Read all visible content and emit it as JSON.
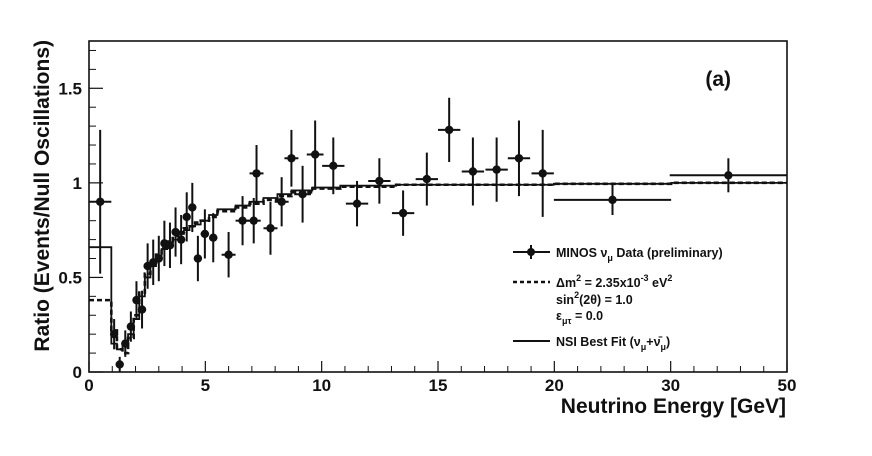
{
  "chart_data": {
    "type": "scatter",
    "panel_label": "(a)",
    "xlabel": "Neutrino Energy [GeV]",
    "ylabel": "Ratio (Events/Null Oscillations)",
    "xlim": [
      0,
      50
    ],
    "ylim": [
      0,
      1.75
    ],
    "x_ticks": [
      {
        "value": 0,
        "label": "0"
      },
      {
        "value": 8.3333,
        "label": "5"
      },
      {
        "value": 16.6667,
        "label": "10"
      },
      {
        "value": 25,
        "label": "15"
      },
      {
        "value": 33.3333,
        "label": "20"
      },
      {
        "value": 41.6667,
        "label": "30"
      },
      {
        "value": 50,
        "label": "50"
      }
    ],
    "y_ticks": [
      {
        "value": 0,
        "label": "0"
      },
      {
        "value": 0.5,
        "label": "0.5"
      },
      {
        "value": 1,
        "label": "1"
      },
      {
        "value": 1.5,
        "label": "1.5"
      }
    ],
    "series": [
      {
        "name": "MINOS ν_μ Data (preliminary)",
        "style": "points-with-error-bars",
        "points": [
          {
            "x": 0.8,
            "xerr": 0.8,
            "y": 0.9,
            "yerr": 0.38
          },
          {
            "x": 1.8,
            "xerr": 0.2,
            "y": 0.2,
            "yerr": 0.08
          },
          {
            "x": 2.2,
            "xerr": 0.2,
            "y": 0.04,
            "yerr": 0.04
          },
          {
            "x": 2.6,
            "xerr": 0.2,
            "y": 0.15,
            "yerr": 0.07
          },
          {
            "x": 3.0,
            "xerr": 0.2,
            "y": 0.24,
            "yerr": 0.08
          },
          {
            "x": 3.4,
            "xerr": 0.2,
            "y": 0.38,
            "yerr": 0.1
          },
          {
            "x": 3.8,
            "xerr": 0.2,
            "y": 0.33,
            "yerr": 0.1
          },
          {
            "x": 4.2,
            "xerr": 0.2,
            "y": 0.56,
            "yerr": 0.12
          },
          {
            "x": 4.6,
            "xerr": 0.2,
            "y": 0.58,
            "yerr": 0.12
          },
          {
            "x": 5.0,
            "xerr": 0.2,
            "y": 0.6,
            "yerr": 0.12
          },
          {
            "x": 5.4,
            "xerr": 0.2,
            "y": 0.68,
            "yerr": 0.12
          },
          {
            "x": 5.8,
            "xerr": 0.2,
            "y": 0.67,
            "yerr": 0.12
          },
          {
            "x": 6.2,
            "xerr": 0.2,
            "y": 0.74,
            "yerr": 0.13
          },
          {
            "x": 6.6,
            "xerr": 0.2,
            "y": 0.7,
            "yerr": 0.13
          },
          {
            "x": 7.0,
            "xerr": 0.2,
            "y": 0.82,
            "yerr": 0.13
          },
          {
            "x": 7.4,
            "xerr": 0.2,
            "y": 0.87,
            "yerr": 0.13
          },
          {
            "x": 7.8,
            "xerr": 0.2,
            "y": 0.6,
            "yerr": 0.12
          },
          {
            "x": 8.3,
            "xerr": 0.3,
            "y": 0.73,
            "yerr": 0.13
          },
          {
            "x": 8.9,
            "xerr": 0.3,
            "y": 0.71,
            "yerr": 0.13
          },
          {
            "x": 10.0,
            "xerr": 0.5,
            "y": 0.62,
            "yerr": 0.12
          },
          {
            "x": 11.0,
            "xerr": 0.5,
            "y": 0.8,
            "yerr": 0.13
          },
          {
            "x": 11.8,
            "xerr": 0.5,
            "y": 0.8,
            "yerr": 0.12
          },
          {
            "x": 12.0,
            "xerr": 0.5,
            "y": 1.05,
            "yerr": 0.15
          },
          {
            "x": 13.0,
            "xerr": 0.5,
            "y": 0.76,
            "yerr": 0.14
          },
          {
            "x": 13.8,
            "xerr": 0.5,
            "y": 0.9,
            "yerr": 0.13
          },
          {
            "x": 14.5,
            "xerr": 0.5,
            "y": 1.13,
            "yerr": 0.15
          },
          {
            "x": 15.3,
            "xerr": 0.6,
            "y": 0.94,
            "yerr": 0.15
          },
          {
            "x": 16.2,
            "xerr": 0.6,
            "y": 1.15,
            "yerr": 0.18
          },
          {
            "x": 17.5,
            "xerr": 0.8,
            "y": 1.09,
            "yerr": 0.15
          },
          {
            "x": 19.2,
            "xerr": 0.8,
            "y": 0.89,
            "yerr": 0.12
          },
          {
            "x": 20.8,
            "xerr": 0.8,
            "y": 1.01,
            "yerr": 0.12
          },
          {
            "x": 22.5,
            "xerr": 0.8,
            "y": 0.84,
            "yerr": 0.12
          },
          {
            "x": 24.2,
            "xerr": 0.8,
            "y": 1.02,
            "yerr": 0.14
          },
          {
            "x": 25.8,
            "xerr": 0.8,
            "y": 1.28,
            "yerr": 0.17
          },
          {
            "x": 27.5,
            "xerr": 0.8,
            "y": 1.06,
            "yerr": 0.18
          },
          {
            "x": 29.2,
            "xerr": 0.8,
            "y": 1.07,
            "yerr": 0.17
          },
          {
            "x": 30.8,
            "xerr": 0.8,
            "y": 1.13,
            "yerr": 0.2
          },
          {
            "x": 32.5,
            "xerr": 0.8,
            "y": 1.05,
            "yerr": 0.23
          },
          {
            "x": 37.5,
            "xerr": 4.2,
            "y": 0.91,
            "yerr": 0.08
          },
          {
            "x": 45.8,
            "xerr": 4.2,
            "y": 1.04,
            "yerr": 0.09
          }
        ]
      },
      {
        "name": "Δm² = 2.35x10⁻³ eV²",
        "style": "dashed-histogram",
        "points": [
          {
            "x0": 0.0,
            "x1": 1.6,
            "y": 0.38
          },
          {
            "x0": 1.6,
            "x1": 2.0,
            "y": 0.22
          },
          {
            "x0": 2.0,
            "x1": 2.4,
            "y": 0.12
          },
          {
            "x0": 2.4,
            "x1": 2.8,
            "y": 0.1
          },
          {
            "x0": 2.8,
            "x1": 3.2,
            "y": 0.18
          },
          {
            "x0": 3.2,
            "x1": 3.6,
            "y": 0.3
          },
          {
            "x0": 3.6,
            "x1": 4.0,
            "y": 0.42
          },
          {
            "x0": 4.0,
            "x1": 4.4,
            "y": 0.52
          },
          {
            "x0": 4.4,
            "x1": 4.8,
            "y": 0.58
          },
          {
            "x0": 4.8,
            "x1": 5.2,
            "y": 0.62
          },
          {
            "x0": 5.2,
            "x1": 5.6,
            "y": 0.66
          },
          {
            "x0": 5.6,
            "x1": 6.0,
            "y": 0.69
          },
          {
            "x0": 6.0,
            "x1": 6.4,
            "y": 0.72
          },
          {
            "x0": 6.4,
            "x1": 6.8,
            "y": 0.74
          },
          {
            "x0": 6.8,
            "x1": 7.2,
            "y": 0.76
          },
          {
            "x0": 7.2,
            "x1": 7.6,
            "y": 0.77
          },
          {
            "x0": 7.6,
            "x1": 8.0,
            "y": 0.79
          },
          {
            "x0": 8.0,
            "x1": 8.6,
            "y": 0.8
          },
          {
            "x0": 8.6,
            "x1": 9.2,
            "y": 0.82
          },
          {
            "x0": 9.2,
            "x1": 10.5,
            "y": 0.85
          },
          {
            "x0": 10.5,
            "x1": 11.5,
            "y": 0.87
          },
          {
            "x0": 11.5,
            "x1": 12.5,
            "y": 0.89
          },
          {
            "x0": 12.5,
            "x1": 13.5,
            "y": 0.91
          },
          {
            "x0": 13.5,
            "x1": 14.5,
            "y": 0.93
          },
          {
            "x0": 14.5,
            "x1": 16.0,
            "y": 0.95
          },
          {
            "x0": 16.0,
            "x1": 18.0,
            "y": 0.97
          },
          {
            "x0": 18.0,
            "x1": 22.0,
            "y": 0.98
          },
          {
            "x0": 22.0,
            "x1": 33.3,
            "y": 0.99
          },
          {
            "x0": 33.3,
            "x1": 41.7,
            "y": 0.995
          },
          {
            "x0": 41.7,
            "x1": 50.0,
            "y": 1.0
          }
        ]
      },
      {
        "name": "NSI Best Fit (ν_μ+ν̄_μ)",
        "style": "solid-histogram",
        "points": [
          {
            "x0": 0.0,
            "x1": 1.6,
            "y": 0.66
          },
          {
            "x0": 1.6,
            "x1": 2.0,
            "y": 0.15
          },
          {
            "x0": 2.0,
            "x1": 2.4,
            "y": 0.12
          },
          {
            "x0": 2.4,
            "x1": 2.8,
            "y": 0.14
          },
          {
            "x0": 2.8,
            "x1": 3.2,
            "y": 0.2
          },
          {
            "x0": 3.2,
            "x1": 3.6,
            "y": 0.28
          },
          {
            "x0": 3.6,
            "x1": 4.0,
            "y": 0.4
          },
          {
            "x0": 4.0,
            "x1": 4.4,
            "y": 0.5
          },
          {
            "x0": 4.4,
            "x1": 4.8,
            "y": 0.56
          },
          {
            "x0": 4.8,
            "x1": 5.2,
            "y": 0.61
          },
          {
            "x0": 5.2,
            "x1": 5.6,
            "y": 0.65
          },
          {
            "x0": 5.6,
            "x1": 6.0,
            "y": 0.68
          },
          {
            "x0": 6.0,
            "x1": 6.4,
            "y": 0.7
          },
          {
            "x0": 6.4,
            "x1": 6.8,
            "y": 0.73
          },
          {
            "x0": 6.8,
            "x1": 7.2,
            "y": 0.75
          },
          {
            "x0": 7.2,
            "x1": 7.6,
            "y": 0.77
          },
          {
            "x0": 7.6,
            "x1": 8.0,
            "y": 0.78
          },
          {
            "x0": 8.0,
            "x1": 8.6,
            "y": 0.8
          },
          {
            "x0": 8.6,
            "x1": 9.2,
            "y": 0.83
          },
          {
            "x0": 9.2,
            "x1": 10.5,
            "y": 0.86
          },
          {
            "x0": 10.5,
            "x1": 11.5,
            "y": 0.88
          },
          {
            "x0": 11.5,
            "x1": 12.5,
            "y": 0.9
          },
          {
            "x0": 12.5,
            "x1": 13.5,
            "y": 0.92
          },
          {
            "x0": 13.5,
            "x1": 14.5,
            "y": 0.94
          },
          {
            "x0": 14.5,
            "x1": 16.0,
            "y": 0.96
          },
          {
            "x0": 16.0,
            "x1": 18.0,
            "y": 0.975
          },
          {
            "x0": 18.0,
            "x1": 22.0,
            "y": 0.985
          },
          {
            "x0": 22.0,
            "x1": 33.3,
            "y": 0.99
          },
          {
            "x0": 33.3,
            "x1": 41.7,
            "y": 0.995
          },
          {
            "x0": 41.7,
            "x1": 50.0,
            "y": 1.0
          }
        ]
      }
    ],
    "legend": {
      "placement": "center-right",
      "entries": [
        {
          "label": "MINOS ν_μ Data (preliminary)",
          "marker": "point-errorbar"
        },
        {
          "label": "Δm² = 2.35x10⁻³ eV²",
          "marker": "dashed-line"
        },
        {
          "label": "sin²(2θ) = 1.0",
          "marker": "none"
        },
        {
          "label": "ε_μτ = 0.0",
          "marker": "none"
        },
        {
          "label": "NSI Best Fit (ν_μ+ν̄_μ)",
          "marker": "solid-line"
        }
      ]
    },
    "grid": false
  }
}
